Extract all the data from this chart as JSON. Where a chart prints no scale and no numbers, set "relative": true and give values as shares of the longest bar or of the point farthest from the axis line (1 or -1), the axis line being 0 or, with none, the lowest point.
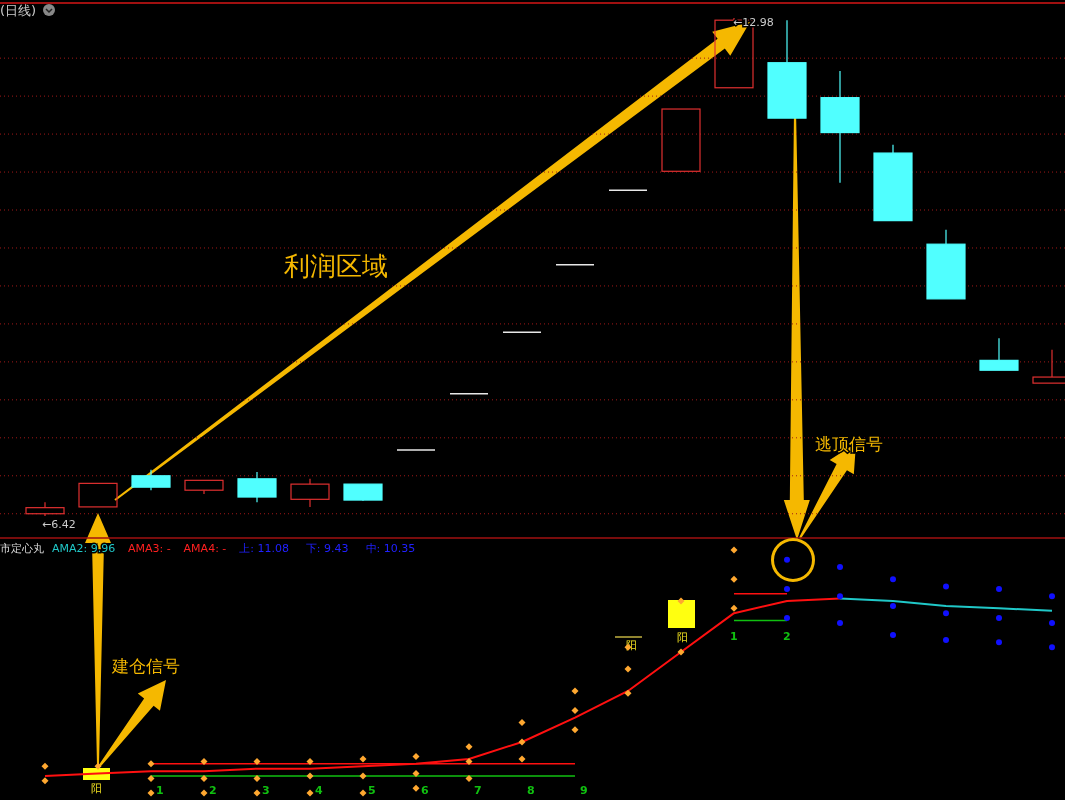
{
  "chart_data": [
    {
      "type": "candlestick",
      "title": "(日线)",
      "categories": [
        null,
        null,
        null,
        null,
        null,
        null,
        null,
        null,
        null,
        null,
        null,
        null,
        null,
        null,
        null,
        null,
        null,
        null,
        null,
        null
      ],
      "ohlc": [
        [
          6.45,
          6.6,
          6.42,
          6.53
        ],
        [
          6.54,
          6.85,
          6.54,
          6.85
        ],
        [
          6.95,
          7.03,
          6.76,
          6.8
        ],
        [
          6.76,
          6.89,
          6.71,
          6.89
        ],
        [
          6.91,
          7.0,
          6.6,
          6.67
        ],
        [
          6.64,
          6.91,
          6.54,
          6.84
        ],
        [
          6.84,
          6.84,
          6.62,
          6.63
        ],
        [
          7.29,
          7.29,
          7.29,
          7.29
        ],
        [
          8.03,
          8.03,
          8.03,
          8.03
        ],
        [
          8.84,
          8.84,
          8.84,
          8.84
        ],
        [
          9.73,
          9.73,
          9.73,
          9.73
        ],
        [
          10.71,
          10.71,
          10.71,
          10.71
        ],
        [
          10.96,
          11.78,
          10.96,
          11.78
        ],
        [
          12.06,
          12.98,
          12.06,
          12.95
        ],
        [
          12.39,
          12.95,
          11.66,
          11.66
        ],
        [
          11.93,
          12.28,
          10.81,
          11.47
        ],
        [
          11.2,
          11.31,
          10.31,
          10.31
        ],
        [
          10.0,
          10.19,
          9.28,
          9.28
        ],
        [
          8.47,
          8.76,
          8.34,
          8.34
        ],
        [
          8.17,
          8.61,
          8.17,
          8.25
        ]
      ],
      "ylim": [
        6.17,
        13.15
      ],
      "yticks": [
        {
          "value": 6.45,
          "label": null
        },
        {
          "value": 6.95,
          "label": null
        },
        {
          "value": 7.45,
          "label": null
        },
        {
          "value": 7.95,
          "label": null
        },
        {
          "value": 8.45,
          "label": null
        },
        {
          "value": 8.95,
          "label": null
        },
        {
          "value": 9.45,
          "label": null
        },
        {
          "value": 9.95,
          "label": null
        },
        {
          "value": 10.45,
          "label": null
        },
        {
          "value": 10.95,
          "label": null
        },
        {
          "value": 11.45,
          "label": null
        },
        {
          "value": 11.95,
          "label": null
        },
        {
          "value": 12.45,
          "label": null
        }
      ],
      "grid": true,
      "annotations": [
        {
          "text": "←6.42",
          "y": 6.42
        },
        {
          "text": "←12.98",
          "y": 12.98
        },
        "利润区域",
        "逃顶信号"
      ]
    },
    {
      "type": "line",
      "relative": true,
      "categories": [
        null,
        null,
        null,
        null,
        null,
        null,
        null,
        null,
        null,
        null,
        null,
        null,
        null,
        null,
        null,
        null,
        null,
        null,
        null,
        null
      ],
      "series": [
        {
          "type": "line",
          "color": "#ff1010",
          "values": [
            0.07,
            0.08,
            0.09,
            0.09,
            0.1,
            0.1,
            0.11,
            0.12,
            0.14,
            0.21,
            0.31,
            0.42,
            0.58,
            0.74,
            0.79,
            0.8,
            null,
            null,
            null,
            null
          ]
        },
        {
          "type": "line",
          "color": "#20c8c8",
          "values": [
            null,
            null,
            null,
            null,
            null,
            null,
            null,
            null,
            null,
            null,
            null,
            null,
            null,
            null,
            null,
            0.8,
            0.79,
            0.77,
            0.76,
            0.75
          ]
        },
        {
          "type": "line",
          "color": "#ff1010",
          "values": [
            null,
            null,
            0.12,
            0.12,
            0.12,
            0.12,
            0.12,
            0.12,
            0.12,
            0.12,
            0.12,
            null,
            null,
            null,
            null,
            null,
            null,
            null,
            null,
            null
          ]
        },
        {
          "type": "line",
          "color": "#10c010",
          "values": [
            null,
            null,
            0.07,
            0.07,
            0.07,
            0.07,
            0.07,
            0.07,
            0.07,
            0.07,
            0.07,
            null,
            null,
            null,
            null,
            null,
            null,
            null,
            null,
            null
          ]
        },
        {
          "type": "line",
          "color": "#ff1010",
          "values": [
            null,
            null,
            null,
            null,
            null,
            null,
            null,
            null,
            null,
            null,
            null,
            null,
            null,
            0.82,
            0.82,
            null,
            null,
            null,
            null,
            null
          ]
        },
        {
          "type": "line",
          "color": "#10c010",
          "values": [
            null,
            null,
            null,
            null,
            null,
            null,
            null,
            null,
            null,
            null,
            null,
            null,
            null,
            0.71,
            0.71,
            null,
            null,
            null,
            null,
            null
          ]
        },
        {
          "type": "scatter",
          "marker": "diamond",
          "color": "#ffa830",
          "values": [
            0.11,
            null,
            0.12,
            0.13,
            0.13,
            0.13,
            0.14,
            0.15,
            0.19,
            0.29,
            0.42,
            0.6,
            0.79,
            1,
            null,
            null,
            null,
            null,
            null,
            null
          ]
        },
        {
          "type": "scatter",
          "marker": "diamond",
          "color": "#ffa830",
          "values": [
            0.05,
            0.11,
            0.06,
            0.06,
            0.06,
            0.07,
            0.07,
            0.08,
            0.13,
            0.21,
            0.34,
            0.51,
            null,
            0.88,
            null,
            null,
            null,
            null,
            null,
            null
          ]
        },
        {
          "type": "scatter",
          "marker": "diamond",
          "color": "#ffa830",
          "values": [
            null,
            null,
            0,
            0,
            0,
            0,
            0,
            0.02,
            0.06,
            0.14,
            0.26,
            0.41,
            0.58,
            0.76,
            null,
            null,
            null,
            null,
            null,
            null
          ]
        },
        {
          "type": "scatter",
          "marker": "circle",
          "color": "#1010ff",
          "values": [
            null,
            null,
            null,
            null,
            null,
            null,
            null,
            null,
            null,
            null,
            null,
            null,
            null,
            null,
            0.96,
            0.93,
            0.88,
            0.85,
            0.84,
            0.81
          ]
        },
        {
          "type": "scatter",
          "marker": "circle",
          "color": "#1010ff",
          "values": [
            null,
            null,
            null,
            null,
            null,
            null,
            null,
            null,
            null,
            null,
            null,
            null,
            null,
            null,
            0.84,
            0.81,
            0.77,
            0.74,
            0.72,
            0.7
          ]
        },
        {
          "type": "scatter",
          "marker": "circle",
          "color": "#1010ff",
          "values": [
            null,
            null,
            null,
            null,
            null,
            null,
            null,
            null,
            null,
            null,
            null,
            null,
            null,
            null,
            0.72,
            0.7,
            0.65,
            0.63,
            0.62,
            0.6
          ]
        }
      ],
      "annotations": [
        "市定心丸",
        "AMA2: 9.96",
        "AMA3: -",
        "AMA4: -",
        "上: 11.08",
        "下: 9.43",
        "中: 10.35",
        "建仓信号",
        "阳",
        "阳",
        "阳",
        "1",
        "2",
        "3",
        "4",
        "5",
        "6",
        "7",
        "8",
        "9",
        "1",
        "2"
      ]
    }
  ]
}
